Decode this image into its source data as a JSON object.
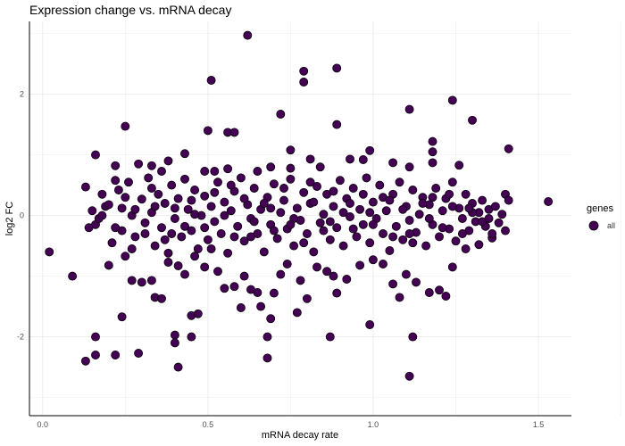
{
  "chart_data": {
    "type": "scatter",
    "title": "Expression change vs. mRNA decay",
    "xlabel": "mRNA decay rate",
    "ylabel": "log2 FC",
    "xlim": [
      -0.04,
      1.6
    ],
    "ylim": [
      -3.3,
      3.2
    ],
    "x_ticks": [
      0.0,
      0.5,
      1.0,
      1.5
    ],
    "x_tick_labels": [
      "0.0",
      "0.5",
      "1.0",
      "1.5"
    ],
    "y_ticks": [
      -2,
      0,
      2
    ],
    "y_tick_labels": [
      "-2",
      "0",
      "2"
    ],
    "grid": true,
    "legend": {
      "title": "genes",
      "position": "right",
      "entries": [
        "all"
      ]
    },
    "colors": {
      "point_fill": "#440154",
      "point_stroke": "#000000",
      "grid": "#ebebeb",
      "axis": "#000000"
    },
    "series": [
      {
        "name": "all",
        "points": [
          [
            0.02,
            -0.6
          ],
          [
            0.09,
            -1.0
          ],
          [
            0.13,
            0.47
          ],
          [
            0.13,
            -2.4
          ],
          [
            0.16,
            1.0
          ],
          [
            0.16,
            -2.0
          ],
          [
            0.16,
            -2.3
          ],
          [
            0.25,
            1.47
          ],
          [
            0.24,
            -1.67
          ],
          [
            0.22,
            -2.3
          ],
          [
            0.29,
            -2.27
          ],
          [
            0.41,
            -2.5
          ],
          [
            0.4,
            -1.97
          ],
          [
            0.4,
            -2.1
          ],
          [
            0.45,
            -2.0
          ],
          [
            0.45,
            -1.65
          ],
          [
            0.47,
            -1.62
          ],
          [
            0.5,
            1.4
          ],
          [
            0.51,
            2.23
          ],
          [
            0.56,
            1.37
          ],
          [
            0.58,
            1.37
          ],
          [
            0.62,
            2.97
          ],
          [
            0.68,
            -2.0
          ],
          [
            0.68,
            -2.35
          ],
          [
            0.69,
            -1.7
          ],
          [
            0.72,
            1.67
          ],
          [
            0.79,
            2.38
          ],
          [
            0.79,
            2.2
          ],
          [
            0.77,
            -1.6
          ],
          [
            0.87,
            -2.0
          ],
          [
            0.89,
            2.43
          ],
          [
            0.89,
            1.5
          ],
          [
            0.99,
            -1.8
          ],
          [
            1.11,
            1.75
          ],
          [
            1.11,
            -2.65
          ],
          [
            1.12,
            -2.0
          ],
          [
            1.24,
            1.9
          ],
          [
            1.3,
            1.57
          ],
          [
            1.41,
            1.1
          ],
          [
            1.53,
            0.23
          ],
          [
            1.4,
            0.35
          ],
          [
            1.26,
            0.83
          ],
          [
            1.18,
            1.22
          ],
          [
            1.18,
            1.05
          ],
          [
            1.18,
            0.87
          ],
          [
            1.11,
            0.8
          ],
          [
            1.06,
            0.87
          ],
          [
            0.99,
            1.07
          ],
          [
            0.97,
            0.92
          ],
          [
            0.93,
            0.93
          ],
          [
            0.84,
            0.8
          ],
          [
            0.81,
            0.93
          ],
          [
            0.75,
            1.08
          ],
          [
            0.75,
            0.78
          ],
          [
            0.69,
            0.8
          ],
          [
            0.65,
            0.73
          ],
          [
            0.56,
            0.77
          ],
          [
            0.52,
            0.73
          ],
          [
            0.49,
            0.73
          ],
          [
            0.43,
            1.02
          ],
          [
            0.38,
            0.9
          ],
          [
            0.36,
            0.73
          ],
          [
            0.33,
            0.82
          ],
          [
            0.29,
            0.85
          ],
          [
            0.22,
            0.82
          ],
          [
            0.22,
            0.58
          ],
          [
            0.25,
            -0.67
          ],
          [
            0.27,
            -1.07
          ],
          [
            0.3,
            -1.1
          ],
          [
            0.33,
            -1.07
          ],
          [
            0.34,
            -1.35
          ],
          [
            0.36,
            -1.37
          ],
          [
            0.38,
            -0.77
          ],
          [
            0.41,
            -0.83
          ],
          [
            0.43,
            -0.97
          ],
          [
            0.46,
            -0.67
          ],
          [
            0.49,
            -0.85
          ],
          [
            0.53,
            -0.92
          ],
          [
            0.55,
            -1.2
          ],
          [
            0.58,
            -1.17
          ],
          [
            0.61,
            -1.0
          ],
          [
            0.63,
            -1.22
          ],
          [
            0.65,
            -1.27
          ],
          [
            0.6,
            -1.52
          ],
          [
            0.66,
            -1.5
          ],
          [
            0.7,
            -1.28
          ],
          [
            0.72,
            -0.97
          ],
          [
            0.74,
            -0.8
          ],
          [
            0.78,
            -1.07
          ],
          [
            0.8,
            -1.37
          ],
          [
            0.83,
            -0.85
          ],
          [
            0.86,
            -0.92
          ],
          [
            0.88,
            -1.0
          ],
          [
            0.89,
            -1.28
          ],
          [
            0.92,
            -1.05
          ],
          [
            0.96,
            -0.82
          ],
          [
            1.0,
            -0.73
          ],
          [
            1.03,
            -0.8
          ],
          [
            1.06,
            -1.13
          ],
          [
            1.08,
            -1.35
          ],
          [
            1.1,
            -0.97
          ],
          [
            1.13,
            -1.1
          ],
          [
            1.17,
            -1.27
          ],
          [
            1.2,
            -1.23
          ],
          [
            1.22,
            -1.33
          ],
          [
            1.24,
            -0.85
          ],
          [
            1.28,
            -0.55
          ],
          [
            1.32,
            -0.48
          ],
          [
            1.36,
            -0.37
          ],
          [
            0.16,
            -0.15
          ],
          [
            0.18,
            0.35
          ],
          [
            0.2,
            -0.82
          ],
          [
            0.14,
            -0.2
          ],
          [
            0.15,
            0.08
          ],
          [
            0.17,
            -0.05
          ],
          [
            0.19,
            0.15
          ],
          [
            0.21,
            -0.45
          ],
          [
            0.23,
            0.42
          ],
          [
            0.24,
            0.12
          ],
          [
            0.24,
            -0.25
          ],
          [
            0.26,
            0.55
          ],
          [
            0.27,
            0.0
          ],
          [
            0.28,
            -0.35
          ],
          [
            0.3,
            0.27
          ],
          [
            0.31,
            -0.12
          ],
          [
            0.32,
            0.62
          ],
          [
            0.33,
            0.05
          ],
          [
            0.34,
            -0.5
          ],
          [
            0.35,
            0.35
          ],
          [
            0.36,
            -0.2
          ],
          [
            0.37,
            0.2
          ],
          [
            0.38,
            -0.62
          ],
          [
            0.39,
            0.5
          ],
          [
            0.4,
            -0.05
          ],
          [
            0.41,
            0.28
          ],
          [
            0.42,
            -0.35
          ],
          [
            0.43,
            0.6
          ],
          [
            0.44,
            0.1
          ],
          [
            0.45,
            -0.25
          ],
          [
            0.46,
            0.42
          ],
          [
            0.47,
            -0.55
          ],
          [
            0.48,
            0.0
          ],
          [
            0.49,
            0.32
          ],
          [
            0.5,
            -0.4
          ],
          [
            0.51,
            0.15
          ],
          [
            0.52,
            -0.1
          ],
          [
            0.53,
            0.55
          ],
          [
            0.54,
            -0.3
          ],
          [
            0.55,
            0.22
          ],
          [
            0.56,
            -0.62
          ],
          [
            0.57,
            0.08
          ],
          [
            0.58,
            0.4
          ],
          [
            0.59,
            -0.18
          ],
          [
            0.6,
            0.62
          ],
          [
            0.61,
            -0.42
          ],
          [
            0.62,
            0.18
          ],
          [
            0.63,
            -0.05
          ],
          [
            0.64,
            0.45
          ],
          [
            0.65,
            -0.3
          ],
          [
            0.66,
            0.1
          ],
          [
            0.67,
            -0.6
          ],
          [
            0.68,
            0.3
          ],
          [
            0.69,
            -0.15
          ],
          [
            0.7,
            0.52
          ],
          [
            0.71,
            -0.38
          ],
          [
            0.72,
            0.05
          ],
          [
            0.73,
            0.25
          ],
          [
            0.74,
            -0.22
          ],
          [
            0.75,
            0.6
          ],
          [
            0.76,
            -0.5
          ],
          [
            0.77,
            0.12
          ],
          [
            0.78,
            -0.08
          ],
          [
            0.79,
            0.38
          ],
          [
            0.8,
            -0.3
          ],
          [
            0.81,
            0.2
          ],
          [
            0.82,
            -0.6
          ],
          [
            0.83,
            0.48
          ],
          [
            0.84,
            -0.12
          ],
          [
            0.85,
            0.02
          ],
          [
            0.86,
            0.35
          ],
          [
            0.87,
            -0.4
          ],
          [
            0.88,
            0.15
          ],
          [
            0.89,
            -0.2
          ],
          [
            0.9,
            0.58
          ],
          [
            0.91,
            -0.5
          ],
          [
            0.92,
            0.28
          ],
          [
            0.93,
            -0.02
          ],
          [
            0.94,
            0.45
          ],
          [
            0.95,
            -0.35
          ],
          [
            0.96,
            0.1
          ],
          [
            0.97,
            -0.15
          ],
          [
            0.98,
            0.62
          ],
          [
            0.99,
            -0.45
          ],
          [
            1.0,
            0.22
          ],
          [
            1.01,
            -0.05
          ],
          [
            1.02,
            0.5
          ],
          [
            1.03,
            -0.3
          ],
          [
            1.04,
            0.08
          ],
          [
            1.05,
            -0.58
          ],
          [
            1.06,
            0.35
          ],
          [
            1.07,
            -0.18
          ],
          [
            1.08,
            0.55
          ],
          [
            1.09,
            -0.4
          ],
          [
            1.1,
            0.15
          ],
          [
            1.11,
            -0.08
          ],
          [
            1.12,
            0.42
          ],
          [
            1.13,
            -0.28
          ],
          [
            1.14,
            0.02
          ],
          [
            1.15,
            0.3
          ],
          [
            1.16,
            -0.5
          ],
          [
            1.17,
            0.18
          ],
          [
            1.18,
            -0.15
          ],
          [
            1.19,
            0.45
          ],
          [
            1.2,
            -0.35
          ],
          [
            1.21,
            0.08
          ],
          [
            1.22,
            0.28
          ],
          [
            1.23,
            -0.22
          ],
          [
            1.24,
            0.55
          ],
          [
            1.25,
            -0.42
          ],
          [
            1.26,
            0.12
          ],
          [
            1.27,
            -0.05
          ],
          [
            1.28,
            0.35
          ],
          [
            1.29,
            -0.25
          ],
          [
            1.3,
            0.2
          ],
          [
            1.31,
            -0.1
          ],
          [
            1.32,
            0.05
          ],
          [
            1.33,
            0.25
          ],
          [
            1.34,
            -0.18
          ],
          [
            1.35,
            0.1
          ],
          [
            1.36,
            -0.3
          ],
          [
            1.37,
            0.15
          ],
          [
            1.38,
            -0.12
          ],
          [
            1.39,
            0.02
          ],
          [
            1.4,
            -0.25
          ],
          [
            0.18,
            0.0
          ],
          [
            0.2,
            0.18
          ],
          [
            0.22,
            -0.2
          ],
          [
            0.25,
            0.3
          ],
          [
            0.28,
            0.1
          ],
          [
            0.31,
            -0.3
          ],
          [
            0.34,
            0.15
          ],
          [
            0.37,
            -0.4
          ],
          [
            0.4,
            0.12
          ],
          [
            0.43,
            -0.18
          ],
          [
            0.46,
            0.02
          ],
          [
            0.49,
            -0.2
          ],
          [
            0.52,
            0.38
          ],
          [
            0.55,
            0.0
          ],
          [
            0.58,
            -0.35
          ],
          [
            0.61,
            0.28
          ],
          [
            0.64,
            -0.1
          ],
          [
            0.67,
            0.2
          ],
          [
            0.7,
            -0.25
          ],
          [
            0.73,
            0.45
          ],
          [
            0.76,
            -0.05
          ],
          [
            0.79,
            -0.45
          ],
          [
            0.82,
            0.22
          ],
          [
            0.85,
            -0.25
          ],
          [
            0.88,
            0.4
          ],
          [
            0.91,
            0.05
          ],
          [
            0.94,
            -0.22
          ],
          [
            0.97,
            0.35
          ],
          [
            1.0,
            -0.15
          ],
          [
            1.03,
            0.3
          ],
          [
            1.06,
            -0.35
          ],
          [
            1.09,
            0.1
          ],
          [
            1.12,
            -0.45
          ],
          [
            1.15,
            0.2
          ],
          [
            1.18,
            0.3
          ],
          [
            1.21,
            -0.2
          ],
          [
            1.24,
            0.15
          ],
          [
            1.27,
            -0.3
          ],
          [
            1.3,
            0.05
          ],
          [
            1.33,
            -0.1
          ],
          [
            0.27,
            -0.55
          ],
          [
            0.33,
            0.45
          ],
          [
            0.39,
            -0.3
          ],
          [
            0.45,
            0.25
          ],
          [
            0.51,
            -0.55
          ],
          [
            0.57,
            0.5
          ],
          [
            0.63,
            -0.35
          ],
          [
            0.69,
            0.12
          ],
          [
            0.75,
            -0.15
          ],
          [
            0.81,
            0.55
          ],
          [
            0.87,
            -0.1
          ],
          [
            0.93,
            0.2
          ],
          [
            0.99,
            0.05
          ],
          [
            1.05,
            0.25
          ],
          [
            1.11,
            -0.3
          ],
          [
            1.17,
            -0.05
          ],
          [
            1.23,
            0.35
          ],
          [
            1.29,
            0.12
          ],
          [
            1.35,
            -0.05
          ],
          [
            1.41,
            0.25
          ]
        ]
      }
    ]
  }
}
